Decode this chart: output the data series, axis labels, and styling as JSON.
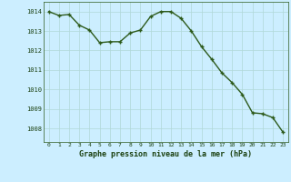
{
  "x": [
    0,
    1,
    2,
    3,
    4,
    5,
    6,
    7,
    8,
    9,
    10,
    11,
    12,
    13,
    14,
    15,
    16,
    17,
    18,
    19,
    20,
    21,
    22,
    23
  ],
  "y": [
    1014.0,
    1013.8,
    1013.85,
    1013.3,
    1013.05,
    1012.4,
    1012.45,
    1012.45,
    1012.9,
    1013.05,
    1013.75,
    1014.0,
    1014.0,
    1013.65,
    1013.0,
    1012.2,
    1011.55,
    1010.85,
    1010.35,
    1009.75,
    1008.8,
    1008.75,
    1008.55,
    1007.8
  ],
  "line_color": "#2d5a1b",
  "marker": "P",
  "marker_size": 2.5,
  "line_width": 1.0,
  "bg_color": "#cceeff",
  "grid_color": "#b0d8d8",
  "text_color": "#1a4010",
  "xlabel": "Graphe pression niveau de la mer (hPa)",
  "yticks": [
    1008,
    1009,
    1010,
    1011,
    1012,
    1013,
    1014
  ],
  "ylim": [
    1007.3,
    1014.5
  ],
  "xlim": [
    -0.5,
    23.5
  ],
  "xtick_labels": [
    "0",
    "1",
    "2",
    "3",
    "4",
    "5",
    "6",
    "7",
    "8",
    "9",
    "10",
    "11",
    "12",
    "13",
    "14",
    "15",
    "16",
    "17",
    "18",
    "19",
    "20",
    "21",
    "22",
    "23"
  ]
}
